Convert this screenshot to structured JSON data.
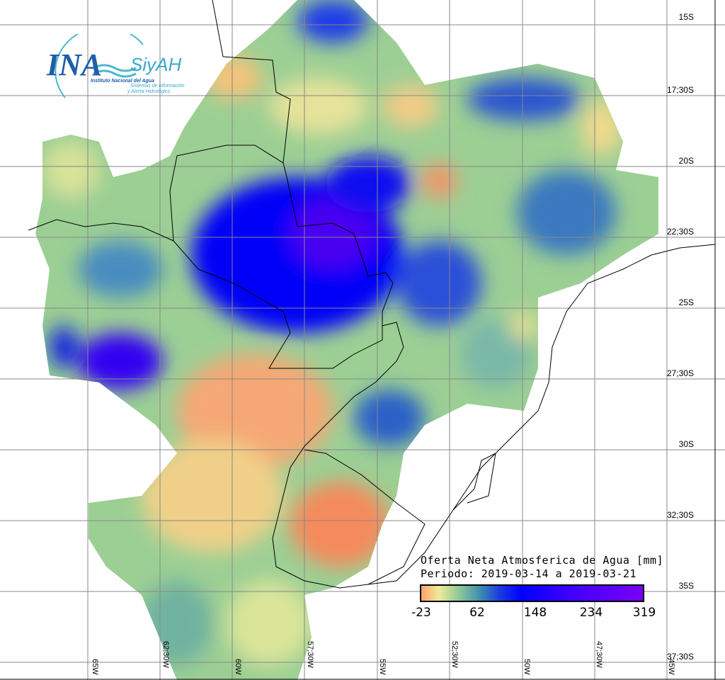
{
  "logo": {
    "main": "INA",
    "brand": "SiyAH",
    "institute": "Instituto Nacional del Agua",
    "system_line1": "Sistemas de información",
    "system_line2": "y Alerta Hidrológico"
  },
  "legend": {
    "title": "Oferta Neta Atmosferica de Agua [mm]",
    "period": "Periodo: 2019-03-14 a 2019-03-21",
    "ticks": [
      "-23",
      "62",
      "148",
      "234",
      "319"
    ],
    "colors": [
      "#fda36b",
      "#eeeb98",
      "#8fc99a",
      "#3b8ab0",
      "#0000ff",
      "#7a00f5"
    ]
  },
  "lat_labels": [
    "15S",
    "17;30S",
    "20S",
    "22;30S",
    "25S",
    "27;30S",
    "30S",
    "32;30S",
    "35S",
    "37;30S"
  ],
  "lon_labels": [
    "65W",
    "62;30W",
    "60W",
    "57;30W",
    "55W",
    "52;30W",
    "50W",
    "47;30W",
    "45W"
  ]
}
